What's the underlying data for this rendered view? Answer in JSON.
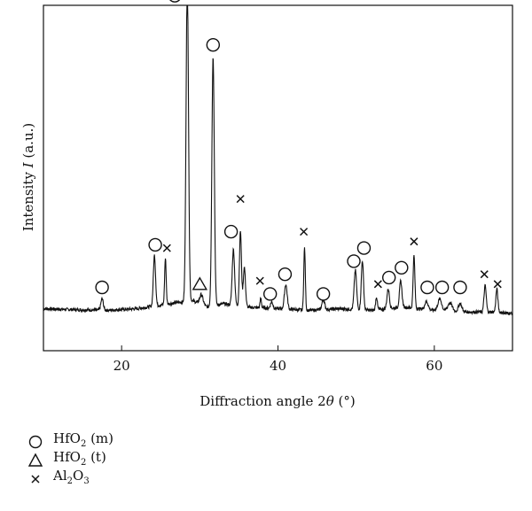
{
  "chart_data": {
    "type": "line",
    "xlabel_prefix": "Diffraction angle 2",
    "xlabel_symbol": "θ",
    "xlabel_suffix": " (°)",
    "ylabel_prefix": "Intensity ",
    "ylabel_symbol": "I",
    "ylabel_suffix": " (a.u.)",
    "xlim": [
      10,
      70
    ],
    "ylim": [
      0,
      100
    ],
    "x_ticks": [
      20,
      40,
      60
    ],
    "y_ticks_shown": false,
    "grid": false,
    "baseline": [
      [
        10,
        8.5
      ],
      [
        14,
        8.2
      ],
      [
        18,
        8.0
      ],
      [
        22,
        8.5
      ],
      [
        26,
        10
      ],
      [
        29,
        11
      ],
      [
        31,
        9
      ],
      [
        33,
        10
      ],
      [
        36,
        9
      ],
      [
        40,
        8.5
      ],
      [
        44,
        8
      ],
      [
        48,
        8.5
      ],
      [
        52,
        8
      ],
      [
        56,
        9
      ],
      [
        60,
        8
      ],
      [
        64,
        7.5
      ],
      [
        68,
        7.5
      ],
      [
        70,
        7
      ]
    ],
    "peaks": [
      {
        "x": 17.5,
        "h": 3.5,
        "w": 0.22
      },
      {
        "x": 24.2,
        "h": 15.5,
        "w": 0.2
      },
      {
        "x": 25.6,
        "h": 14.0,
        "w": 0.14
      },
      {
        "x": 28.4,
        "h": 98.0,
        "w": 0.22
      },
      {
        "x": 30.2,
        "h": 3.0,
        "w": 0.3
      },
      {
        "x": 31.7,
        "h": 76.0,
        "w": 0.22
      },
      {
        "x": 34.3,
        "h": 17.0,
        "w": 0.22
      },
      {
        "x": 35.2,
        "h": 23.0,
        "w": 0.18
      },
      {
        "x": 35.7,
        "h": 12.0,
        "w": 0.2
      },
      {
        "x": 37.8,
        "h": 3.0,
        "w": 0.12
      },
      {
        "x": 39.2,
        "h": 2.0,
        "w": 0.22
      },
      {
        "x": 41.0,
        "h": 7.5,
        "w": 0.25
      },
      {
        "x": 43.4,
        "h": 19.0,
        "w": 0.14
      },
      {
        "x": 45.8,
        "h": 3.0,
        "w": 0.25
      },
      {
        "x": 49.9,
        "h": 12.0,
        "w": 0.22
      },
      {
        "x": 50.8,
        "h": 15.0,
        "w": 0.2
      },
      {
        "x": 52.6,
        "h": 4.0,
        "w": 0.15
      },
      {
        "x": 54.1,
        "h": 6.0,
        "w": 0.22
      },
      {
        "x": 55.7,
        "h": 8.0,
        "w": 0.22
      },
      {
        "x": 57.4,
        "h": 16.0,
        "w": 0.16
      },
      {
        "x": 59.0,
        "h": 2.5,
        "w": 0.3
      },
      {
        "x": 60.7,
        "h": 3.5,
        "w": 0.35
      },
      {
        "x": 62.0,
        "h": 2.5,
        "w": 0.4
      },
      {
        "x": 63.3,
        "h": 2.5,
        "w": 0.3
      },
      {
        "x": 66.5,
        "h": 8.0,
        "w": 0.2
      },
      {
        "x": 68.0,
        "h": 7.0,
        "w": 0.18
      }
    ],
    "markers": [
      {
        "type": "circle",
        "x": 17.5,
        "y": 15
      },
      {
        "type": "circle",
        "x": 24.3,
        "y": 28
      },
      {
        "type": "cross",
        "x": 25.8,
        "y": 27
      },
      {
        "type": "circle",
        "x": 26.8,
        "y": 104
      },
      {
        "type": "circle",
        "x": 31.7,
        "y": 89
      },
      {
        "type": "triangle",
        "x": 30.0,
        "y": 16
      },
      {
        "type": "circle",
        "x": 34.0,
        "y": 32
      },
      {
        "type": "cross",
        "x": 35.2,
        "y": 42
      },
      {
        "type": "cross",
        "x": 37.7,
        "y": 17
      },
      {
        "type": "circle",
        "x": 39.0,
        "y": 13
      },
      {
        "type": "circle",
        "x": 40.9,
        "y": 19
      },
      {
        "type": "cross",
        "x": 43.3,
        "y": 32
      },
      {
        "type": "circle",
        "x": 45.8,
        "y": 13
      },
      {
        "type": "circle",
        "x": 49.7,
        "y": 23
      },
      {
        "type": "circle",
        "x": 51.0,
        "y": 27
      },
      {
        "type": "cross",
        "x": 52.8,
        "y": 16
      },
      {
        "type": "circle",
        "x": 54.2,
        "y": 18
      },
      {
        "type": "circle",
        "x": 55.8,
        "y": 21
      },
      {
        "type": "cross",
        "x": 57.4,
        "y": 29
      },
      {
        "type": "circle",
        "x": 59.1,
        "y": 15
      },
      {
        "type": "circle",
        "x": 61.0,
        "y": 15
      },
      {
        "type": "circle",
        "x": 63.3,
        "y": 15
      },
      {
        "type": "cross",
        "x": 66.4,
        "y": 19
      },
      {
        "type": "cross",
        "x": 68.1,
        "y": 16
      }
    ]
  },
  "legend": [
    {
      "symbol": "circle",
      "label": "HfO",
      "sub": "2",
      "suffix": " (m)"
    },
    {
      "symbol": "triangle",
      "label": "HfO",
      "sub": "2",
      "suffix": " (t)"
    },
    {
      "symbol": "cross",
      "label": "Al",
      "sub": "2",
      "mid": "O",
      "sub2": "3",
      "suffix": ""
    }
  ]
}
